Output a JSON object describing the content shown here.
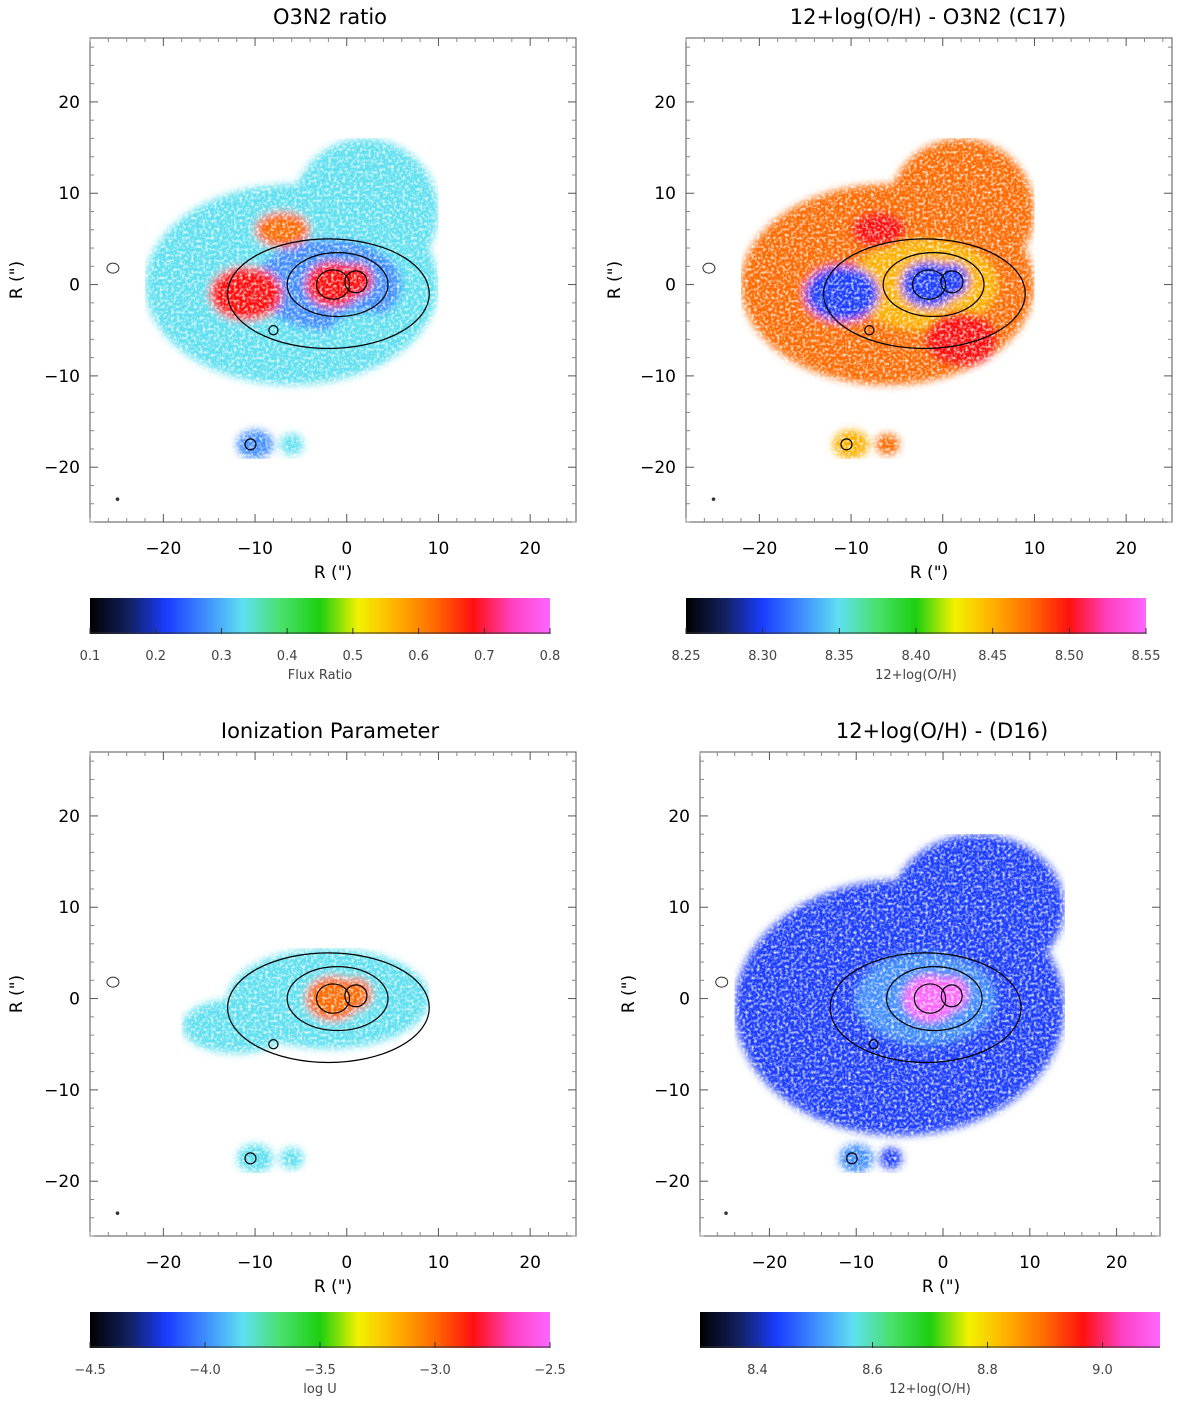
{
  "chart_data": [
    {
      "type": "heatmap",
      "title": "O3N2 ratio",
      "xlabel": "R (\")",
      "ylabel": "R (\")",
      "xlim": [
        -28,
        25
      ],
      "ylim": [
        -26,
        27
      ],
      "xticks": [
        -20,
        -10,
        0,
        10,
        20
      ],
      "yticks": [
        -20,
        -10,
        0,
        10,
        20
      ],
      "colorbar": {
        "label": "Flux Ratio",
        "range": [
          0.1,
          0.8
        ],
        "ticks": [
          "0.1",
          "0.2",
          "0.3",
          "0.4",
          "0.5",
          "0.6",
          "0.7",
          "0.8"
        ]
      }
    },
    {
      "type": "heatmap",
      "title": "12+log(O/H) - O3N2 (C17)",
      "xlabel": "R (\")",
      "ylabel": "R (\")",
      "xlim": [
        -28,
        25
      ],
      "ylim": [
        -26,
        27
      ],
      "xticks": [
        -20,
        -10,
        0,
        10,
        20
      ],
      "yticks": [
        -20,
        -10,
        0,
        10,
        20
      ],
      "colorbar": {
        "label": "12+log(O/H)",
        "range": [
          8.25,
          8.55
        ],
        "ticks": [
          "8.25",
          "8.30",
          "8.35",
          "8.40",
          "8.45",
          "8.50",
          "8.55"
        ]
      }
    },
    {
      "type": "heatmap",
      "title": "Ionization Parameter",
      "xlabel": "R (\")",
      "ylabel": "R (\")",
      "xlim": [
        -28,
        25
      ],
      "ylim": [
        -26,
        27
      ],
      "xticks": [
        -20,
        -10,
        0,
        10,
        20
      ],
      "yticks": [
        -20,
        -10,
        0,
        10,
        20
      ],
      "colorbar": {
        "label": "log U",
        "range": [
          -4.5,
          -2.5
        ],
        "ticks": [
          "-4.5",
          "-4.0",
          "-3.5",
          "-3.0",
          "-2.5"
        ]
      }
    },
    {
      "type": "heatmap",
      "title": "12+log(O/H) - (D16)",
      "xlabel": "R (\")",
      "ylabel": "R (\")",
      "xlim": [
        -28,
        25
      ],
      "ylim": [
        -26,
        27
      ],
      "xticks": [
        -20,
        -10,
        0,
        10,
        20
      ],
      "yticks": [
        -20,
        -10,
        0,
        10,
        20
      ],
      "colorbar": {
        "label": "12+log(O/H)",
        "range": [
          8.3,
          9.1
        ],
        "ticks": [
          "8.4",
          "8.6",
          "8.8",
          "9.0"
        ]
      }
    }
  ],
  "colormap": [
    "#000000",
    "#12205e",
    "#1a3cff",
    "#3f8cff",
    "#5fe0f0",
    "#49e06a",
    "#1ccf10",
    "#f2f200",
    "#ffb000",
    "#ff6a00",
    "#ff1010",
    "#ff40c0",
    "#ff66ff"
  ],
  "contour_color": "#000000",
  "bg_color": "#ffffff"
}
